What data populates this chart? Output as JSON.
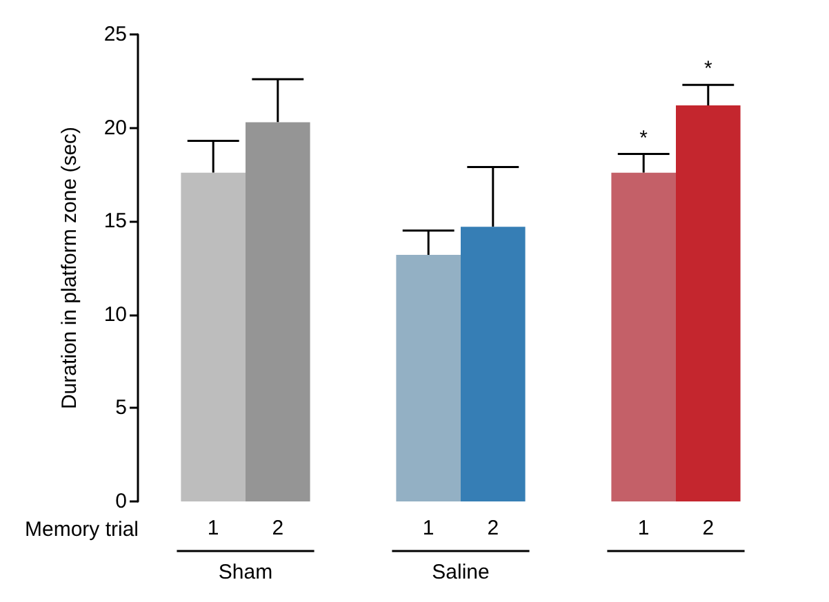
{
  "chart_data": {
    "type": "bar",
    "ylabel": "Duration in platform zone (sec)",
    "xlabel": "Memory trial",
    "categories": [
      "Sham",
      "Saline",
      null
    ],
    "series": [
      {
        "name": "1",
        "colors": [
          "#bdbdbd",
          "#93b0c4",
          "#c46068"
        ],
        "values": [
          17.6,
          13.2,
          17.6
        ],
        "errors": [
          [
            17.6,
            19.3
          ],
          [
            13.2,
            14.5
          ],
          [
            17.6,
            18.6
          ]
        ],
        "value_labels": [
          null,
          null,
          "*"
        ]
      },
      {
        "name": "2",
        "colors": [
          "#959595",
          "#367eb5",
          "#c4262e"
        ],
        "values": [
          20.3,
          14.7,
          21.2
        ],
        "errors": [
          [
            20.3,
            22.6
          ],
          [
            14.7,
            17.9
          ],
          [
            21.2,
            22.3
          ]
        ],
        "value_labels": [
          null,
          null,
          "*"
        ]
      }
    ],
    "ylim": [
      0,
      25
    ],
    "yticks": [
      0,
      5,
      10,
      15,
      20,
      25
    ]
  }
}
